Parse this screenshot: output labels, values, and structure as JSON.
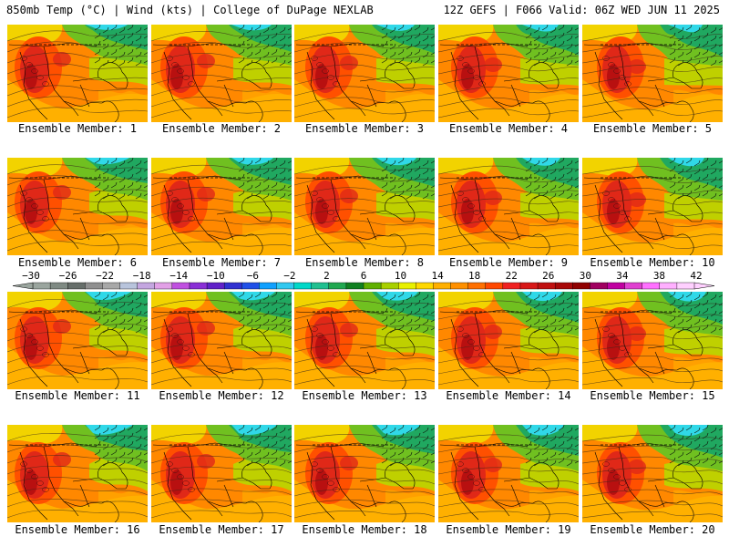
{
  "header": {
    "title_left": "850mb Temp (°C) | Wind (kts) | College of DuPage NEXLAB",
    "title_right": "12Z GEFS | F066 Valid: 06Z WED JUN 11 2025"
  },
  "panel_label_prefix": "Ensemble Member:",
  "members": [
    {
      "label": "Ensemble Member: 1"
    },
    {
      "label": "Ensemble Member: 2"
    },
    {
      "label": "Ensemble Member: 3"
    },
    {
      "label": "Ensemble Member: 4"
    },
    {
      "label": "Ensemble Member: 5"
    },
    {
      "label": "Ensemble Member: 6"
    },
    {
      "label": "Ensemble Member: 7"
    },
    {
      "label": "Ensemble Member: 8"
    },
    {
      "label": "Ensemble Member: 9"
    },
    {
      "label": "Ensemble Member: 10"
    },
    {
      "label": "Ensemble Member: 11"
    },
    {
      "label": "Ensemble Member: 12"
    },
    {
      "label": "Ensemble Member: 13"
    },
    {
      "label": "Ensemble Member: 14"
    },
    {
      "label": "Ensemble Member: 15"
    },
    {
      "label": "Ensemble Member: 16"
    },
    {
      "label": "Ensemble Member: 17"
    },
    {
      "label": "Ensemble Member: 18"
    },
    {
      "label": "Ensemble Member: 19"
    },
    {
      "label": "Ensemble Member: 20"
    }
  ],
  "colorbar": {
    "labels": [
      "-30",
      "-26",
      "-22",
      "-18",
      "-14",
      "-10",
      "-6",
      "-2",
      "2",
      "6",
      "10",
      "14",
      "18",
      "22",
      "26",
      "30",
      "34",
      "38",
      "42"
    ],
    "colors": [
      "#9aa59e",
      "#7f8a83",
      "#666e6a",
      "#8f8f8f",
      "#a8a8a8",
      "#b8c4dc",
      "#c4a6e0",
      "#e2a0e6",
      "#c050e0",
      "#8a2fd6",
      "#6020c8",
      "#3030d0",
      "#2050e8",
      "#10a0ff",
      "#30c8f0",
      "#00d8c8",
      "#20c090",
      "#20a850",
      "#108020",
      "#60b000",
      "#a8d000",
      "#e8f000",
      "#ffd800",
      "#ffb000",
      "#ff9000",
      "#ff7000",
      "#ff4800",
      "#f02020",
      "#d81818",
      "#c01010",
      "#a80808",
      "#900000",
      "#a00060",
      "#c000a0",
      "#e040d0",
      "#ff70ff",
      "#ffb0ff",
      "#ffd0ff"
    ]
  },
  "map_palette": {
    "cold": "#30d8e8",
    "cool": "#20a860",
    "mild": "#70c020",
    "warm_green": "#b8d800",
    "yellow": "#f0e000",
    "orange_light": "#ffb000",
    "orange": "#ff8800",
    "red_orange": "#ff5000",
    "red": "#e02818",
    "dark_red": "#b81010"
  }
}
